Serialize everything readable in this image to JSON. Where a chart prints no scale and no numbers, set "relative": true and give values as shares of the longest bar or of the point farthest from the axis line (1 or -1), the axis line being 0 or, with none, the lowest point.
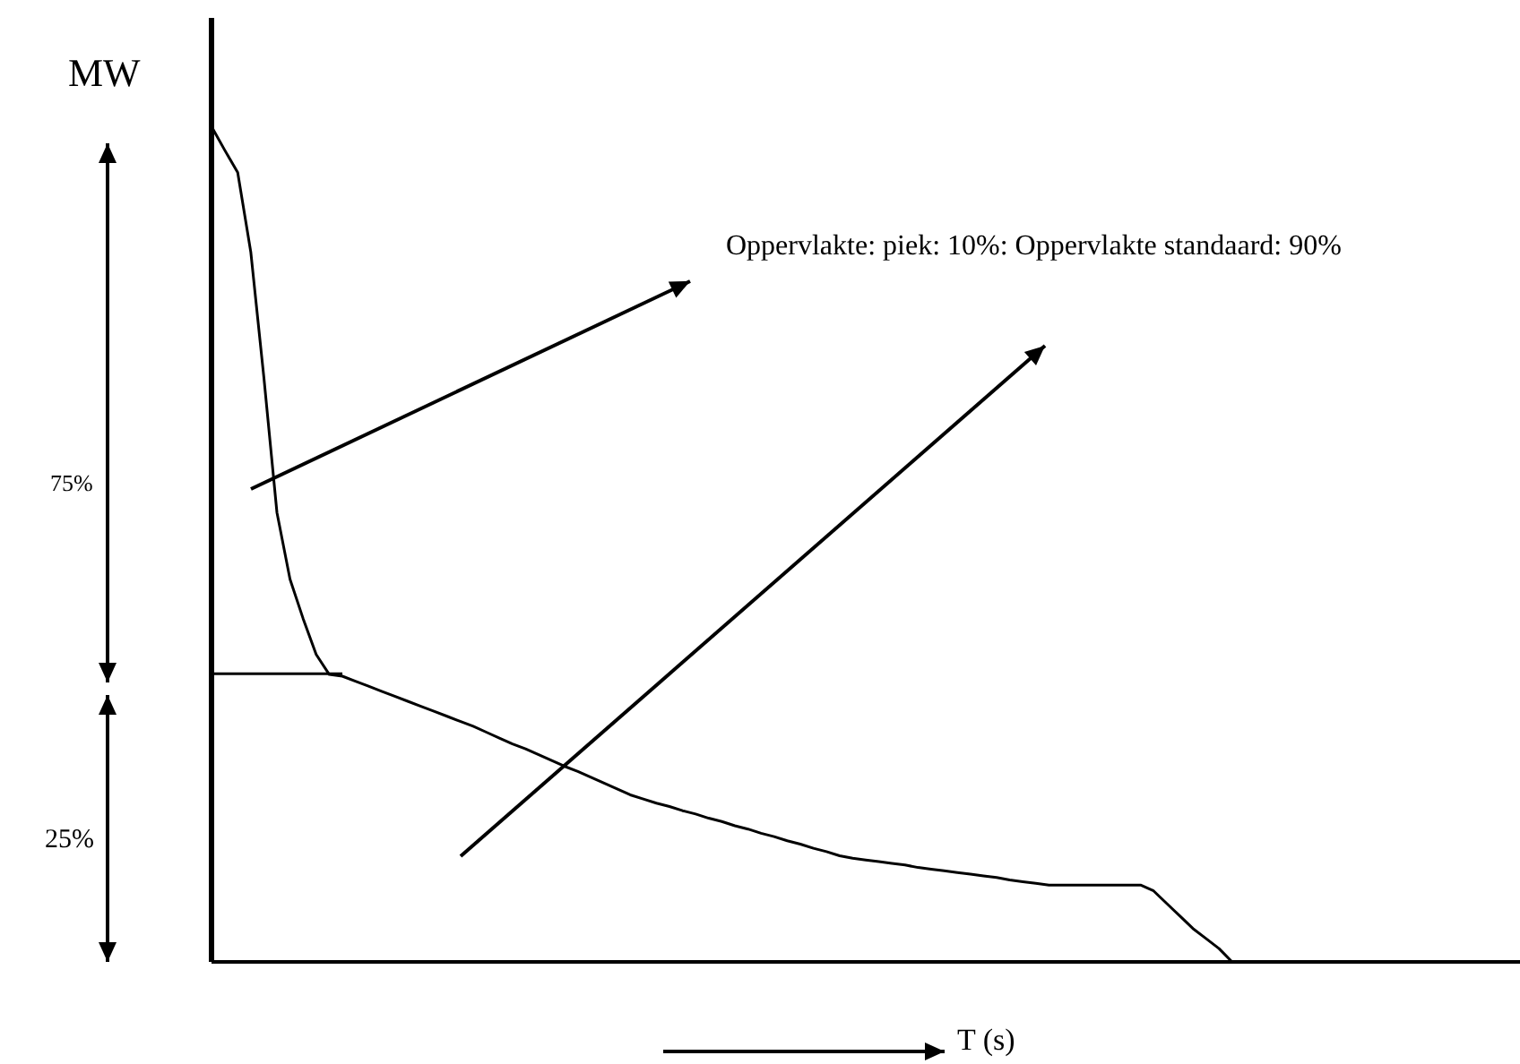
{
  "chart_data": {
    "type": "line",
    "relative": true,
    "xlabel": "T (s)",
    "ylabel": "MW",
    "categories": [
      null,
      null,
      null,
      null,
      null,
      null,
      null,
      null,
      null,
      null,
      null,
      null,
      null,
      null,
      null,
      null,
      null,
      null,
      null,
      null,
      null,
      null,
      null,
      null,
      null,
      null,
      null,
      null,
      null,
      null,
      null,
      null,
      null,
      null,
      null,
      null,
      null,
      null,
      null,
      null,
      null,
      null,
      null,
      null,
      null,
      null,
      null,
      null,
      null,
      null,
      null,
      null,
      null,
      null,
      null,
      null,
      null,
      null,
      null,
      null,
      null,
      null,
      null,
      null,
      null,
      null,
      null,
      null,
      null,
      null,
      null,
      null,
      null,
      null,
      null,
      null,
      null,
      null,
      null,
      null,
      null,
      null,
      null,
      null,
      null,
      null,
      null,
      null,
      null,
      null,
      null,
      null,
      null,
      null,
      null,
      null,
      null,
      null,
      null,
      null,
      null
    ],
    "series": [
      {
        "color": "#000000",
        "values": [
          1,
          0.972,
          0.945,
          0.85,
          0.7,
          0.538,
          0.458,
          0.411,
          0.368,
          0.344,
          0.342,
          0.336,
          0.33,
          0.324,
          0.318,
          0.312,
          0.306,
          0.3,
          0.294,
          0.288,
          0.282,
          0.275,
          0.268,
          0.261,
          0.255,
          0.248,
          0.241,
          0.234,
          0.228,
          0.221,
          0.214,
          0.207,
          0.2,
          0.195,
          0.19,
          0.186,
          0.181,
          0.177,
          0.172,
          0.168,
          0.163,
          0.159,
          0.154,
          0.15,
          0.145,
          0.141,
          0.136,
          0.132,
          0.127,
          0.124,
          0.122,
          0.12,
          0.118,
          0.116,
          0.113,
          0.111,
          0.109,
          0.107,
          0.105,
          0.103,
          0.101,
          0.098,
          0.096,
          0.094,
          0.092,
          0.092,
          0.092,
          0.092,
          0.092,
          0.092,
          0.092,
          0.092,
          0.085,
          0.07,
          0.055,
          0.04,
          0.028,
          0.016,
          0,
          null,
          null,
          null,
          null,
          null,
          null,
          null,
          null,
          null,
          null,
          null,
          null,
          null,
          null,
          null,
          null,
          null,
          null,
          null,
          null,
          null,
          null
        ]
      },
      {
        "color": "#000000",
        "values": [
          0.345,
          0.345,
          0.345,
          0.345,
          0.345,
          0.345,
          0.345,
          0.345,
          0.345,
          0.345,
          0.345,
          null,
          null,
          null,
          null,
          null,
          null,
          null,
          null,
          null,
          null,
          null,
          null,
          null,
          null,
          null,
          null,
          null,
          null,
          null,
          null,
          null,
          null,
          null,
          null,
          null,
          null,
          null,
          null,
          null,
          null,
          null,
          null,
          null,
          null,
          null,
          null,
          null,
          null,
          null,
          null,
          null,
          null,
          null,
          null,
          null,
          null,
          null,
          null,
          null,
          null,
          null,
          null,
          null,
          null,
          null,
          null,
          null,
          null,
          null,
          null,
          null,
          null,
          null,
          null,
          null,
          null,
          null,
          null,
          null,
          null,
          null,
          null,
          null,
          null,
          null,
          null,
          null,
          null,
          null,
          null,
          null,
          null,
          null,
          null,
          null,
          null,
          null,
          null,
          null,
          null
        ]
      }
    ],
    "annotations": [
      "75%",
      "25%",
      "Oppervlakte: piek: 10%: Oppervlakte standaard: 90%"
    ]
  }
}
